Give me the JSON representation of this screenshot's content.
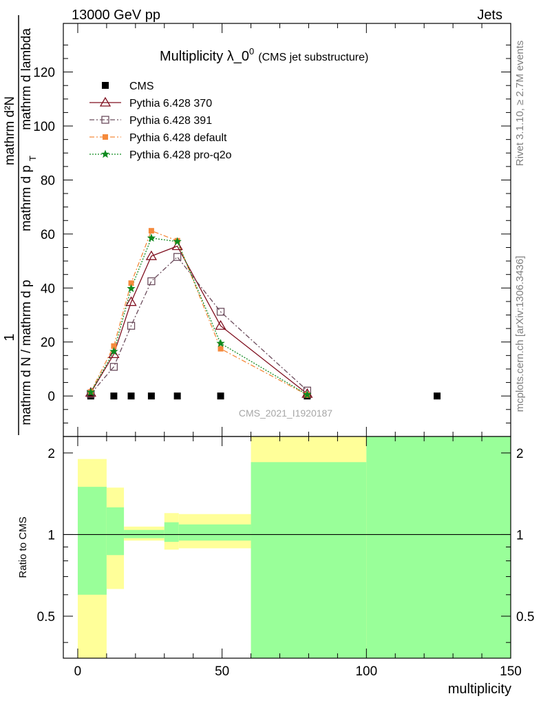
{
  "header": {
    "left": "13000 GeV pp",
    "right": "Jets"
  },
  "side": {
    "rivet": "Rivet 3.1.10, ≥ 2.7M events",
    "mcplots": "mcplots.cern.ch [arXiv:1306.3436]"
  },
  "watermark": "CMS_2021_I1920187",
  "chart_data": [
    {
      "type": "line",
      "title": "Multiplicity λ_0",
      "title_sup": "0",
      "subtitle": "(CMS jet substructure)",
      "ylabel_num": "1",
      "ylabel_num2": "mathrm d²N",
      "ylabel_den": "mathrm d N / mathrm d p",
      "ylabel_den2": "mathrm d p",
      "ylabel_den_sub": "T",
      "ylabel_den3": "mathrm d lambda",
      "ylim": [
        -15,
        138
      ],
      "xlim": [
        -5,
        150
      ],
      "yticks": [
        0,
        20,
        40,
        60,
        80,
        100,
        120
      ],
      "grid": false,
      "legend_position": "top-left",
      "series": [
        {
          "name": "CMS",
          "color": "#000000",
          "marker": "filled-square",
          "x": [
            4.5,
            12.5,
            18.5,
            25.5,
            34.5,
            49.5,
            79.5,
            124.5
          ],
          "y": [
            0,
            0,
            0,
            0,
            0,
            0,
            0,
            0
          ]
        },
        {
          "name": "Pythia 6.428 370",
          "color": "#7f0f1f",
          "marker": "open-triangle",
          "line": "solid",
          "x": [
            4.5,
            12.5,
            18.5,
            25.5,
            34.5,
            49.5,
            79.5
          ],
          "y": [
            1.2,
            15.5,
            34.8,
            51.8,
            55.5,
            26.0,
            0.8
          ]
        },
        {
          "name": "Pythia 6.428 391",
          "color": "#6b4c5c",
          "marker": "open-square",
          "line": "dashdot",
          "x": [
            4.5,
            12.5,
            18.5,
            25.5,
            34.5,
            49.5,
            79.5
          ],
          "y": [
            0.8,
            10.8,
            26.0,
            42.5,
            51.5,
            31.2,
            2.0
          ]
        },
        {
          "name": "Pythia 6.428 default",
          "color": "#f58a3c",
          "marker": "filled-square-small",
          "line": "dashdot",
          "x": [
            4.5,
            12.5,
            18.5,
            25.5,
            34.5,
            49.5,
            79.5
          ],
          "y": [
            1.5,
            18.5,
            41.8,
            61.2,
            57.5,
            17.5,
            0.4
          ]
        },
        {
          "name": "Pythia 6.428 pro-q2o",
          "color": "#0f8a1f",
          "marker": "star",
          "line": "dotted",
          "x": [
            4.5,
            12.5,
            18.5,
            25.5,
            34.5,
            49.5,
            79.5
          ],
          "y": [
            1.4,
            16.5,
            39.8,
            58.5,
            57.2,
            19.5,
            0.5
          ]
        }
      ]
    },
    {
      "type": "area",
      "ylabel": "Ratio to CMS",
      "xlabel": "multiplicity",
      "ylim": [
        0.35,
        2.3
      ],
      "xlim": [
        -5,
        150
      ],
      "yticks": [
        0.5,
        1,
        2
      ],
      "ytick_labels": [
        "0.5",
        "1",
        "2"
      ],
      "xticks": [
        0,
        50,
        100,
        150
      ],
      "xtick_labels": [
        "0",
        "50",
        "100",
        "150"
      ],
      "stat_band_color": "#99ff99",
      "syst_band_color": "#ffff99",
      "bands": [
        {
          "xlow": 0,
          "xhigh": 10,
          "inner": [
            0.6,
            1.5
          ],
          "outer": [
            0.35,
            1.9
          ]
        },
        {
          "xlow": 10,
          "xhigh": 16,
          "inner": [
            0.84,
            1.26
          ],
          "outer": [
            0.63,
            1.49
          ]
        },
        {
          "xlow": 16,
          "xhigh": 30,
          "inner": [
            0.97,
            1.04
          ],
          "outer": [
            0.95,
            1.07
          ]
        },
        {
          "xlow": 30,
          "xhigh": 35,
          "inner": [
            0.94,
            1.11
          ],
          "outer": [
            0.88,
            1.2
          ]
        },
        {
          "xlow": 35,
          "xhigh": 60,
          "inner": [
            0.95,
            1.09
          ],
          "outer": [
            0.89,
            1.19
          ]
        },
        {
          "xlow": 60,
          "xhigh": 100,
          "inner": [
            0.35,
            1.85
          ],
          "outer": [
            0.35,
            2.3
          ]
        },
        {
          "xlow": 100,
          "xhigh": 150,
          "inner": [
            0.35,
            2.3
          ],
          "outer": [
            0.35,
            2.3
          ]
        }
      ]
    }
  ]
}
